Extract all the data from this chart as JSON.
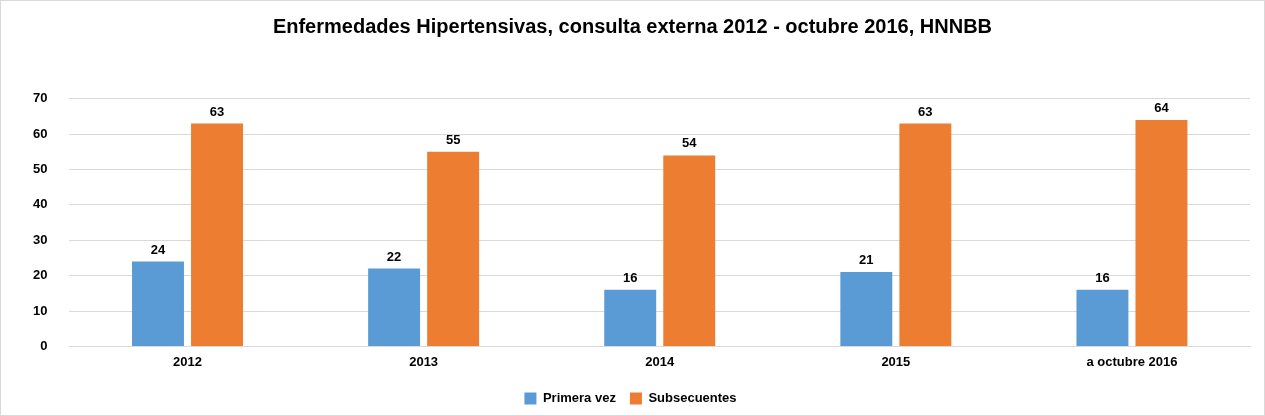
{
  "chart_data": {
    "type": "bar",
    "title": "Enfermedades Hipertensivas, consulta externa 2012 - octubre 2016, HNNBB",
    "categories": [
      "2012",
      "2013",
      "2014",
      "2015",
      "a octubre 2016"
    ],
    "series": [
      {
        "name": "Primera vez",
        "color": "#5b9bd5",
        "values": [
          24,
          22,
          16,
          21,
          16
        ]
      },
      {
        "name": "Subsecuentes",
        "color": "#ed7d31",
        "values": [
          63,
          55,
          54,
          63,
          64
        ]
      }
    ],
    "ylim": [
      0,
      70
    ],
    "yticks": [
      0,
      10,
      20,
      30,
      40,
      50,
      60,
      70
    ],
    "grid": "y",
    "legend": "bottom",
    "data_labels": true
  }
}
